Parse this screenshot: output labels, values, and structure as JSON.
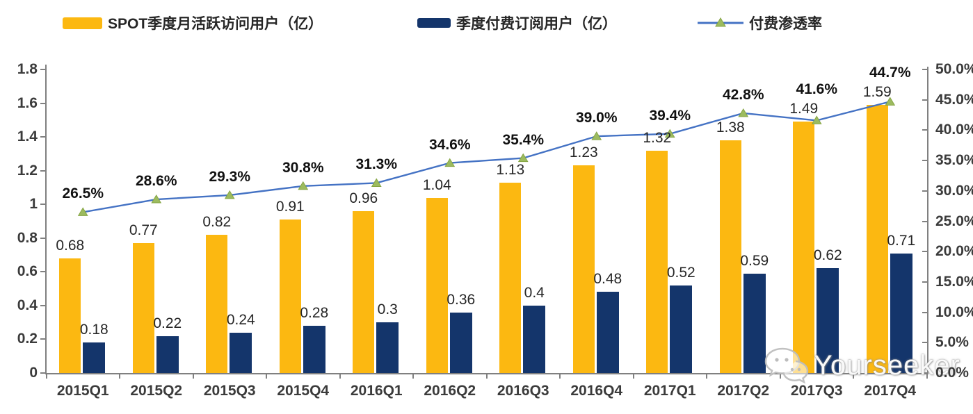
{
  "legend": [
    {
      "label": "SPOT季度月活跃访问用户（亿）",
      "swatch": "bar",
      "color": "#FCB811"
    },
    {
      "label": "季度付费订阅用户（亿）",
      "swatch": "bar",
      "color": "#14356B"
    },
    {
      "label": "付费渗透率",
      "swatch": "line",
      "color": "#4472C4",
      "marker_color": "#9CBB5F"
    }
  ],
  "chart_data": {
    "type": "bar",
    "subtype": "grouped bars with secondary-axis line (combo)",
    "categories": [
      "2015Q1",
      "2015Q2",
      "2015Q3",
      "2015Q4",
      "2016Q1",
      "2016Q2",
      "2016Q3",
      "2016Q4",
      "2017Q1",
      "2017Q2",
      "2017Q3",
      "2017Q4"
    ],
    "series": [
      {
        "name": "SPOT季度月活跃访问用户（亿）",
        "type": "bar",
        "axis": "left",
        "color": "#FCB811",
        "values": [
          0.68,
          0.77,
          0.82,
          0.91,
          0.96,
          1.04,
          1.13,
          1.23,
          1.32,
          1.38,
          1.49,
          1.59
        ],
        "labels": [
          "0.68",
          "0.77",
          "0.82",
          "0.91",
          "0.96",
          "1.04",
          "1.13",
          "1.23",
          "1.32",
          "1.38",
          "1.49",
          "1.59"
        ]
      },
      {
        "name": "季度付费订阅用户（亿）",
        "type": "bar",
        "axis": "left",
        "color": "#14356B",
        "values": [
          0.18,
          0.22,
          0.24,
          0.28,
          0.3,
          0.36,
          0.4,
          0.48,
          0.52,
          0.59,
          0.62,
          0.71
        ],
        "labels": [
          "0.18",
          "0.22",
          "0.24",
          "0.28",
          "0.3",
          "0.36",
          "0.4",
          "0.48",
          "0.52",
          "0.59",
          "0.62",
          "0.71"
        ]
      },
      {
        "name": "付费渗透率",
        "type": "line",
        "axis": "right",
        "color": "#4472C4",
        "marker": "triangle",
        "marker_color": "#9CBB5F",
        "values": [
          26.5,
          28.6,
          29.3,
          30.8,
          31.3,
          34.6,
          35.4,
          39.0,
          39.4,
          42.8,
          41.6,
          44.7
        ],
        "labels": [
          "26.5%",
          "28.6%",
          "29.3%",
          "30.8%",
          "31.3%",
          "34.6%",
          "35.4%",
          "39.0%",
          "39.4%",
          "42.8%",
          "41.6%",
          "44.7%"
        ]
      }
    ],
    "left_axis": {
      "min": 0,
      "max": 1.8,
      "ticks": [
        "1.8",
        "1.6",
        "1.4",
        "1.2",
        "1",
        "0.8",
        "0.6",
        "0.4",
        "0.2",
        "0"
      ]
    },
    "right_axis": {
      "min": 0,
      "max": 50,
      "ticks": [
        "50.0%",
        "45.0%",
        "40.0%",
        "35.0%",
        "30.0%",
        "25.0%",
        "20.0%",
        "15.0%",
        "10.0%",
        "5.0%",
        "0.0%"
      ]
    },
    "grid": false,
    "legend_position": "top"
  },
  "watermark": {
    "text": "Yourseeker",
    "icon": "wechat-icon"
  },
  "colors": {
    "mau_bar": "#FCB811",
    "subs_bar": "#14356B",
    "line": "#4472C4",
    "marker": "#9CBB5F",
    "axis": "#808080",
    "text": "#262626"
  }
}
